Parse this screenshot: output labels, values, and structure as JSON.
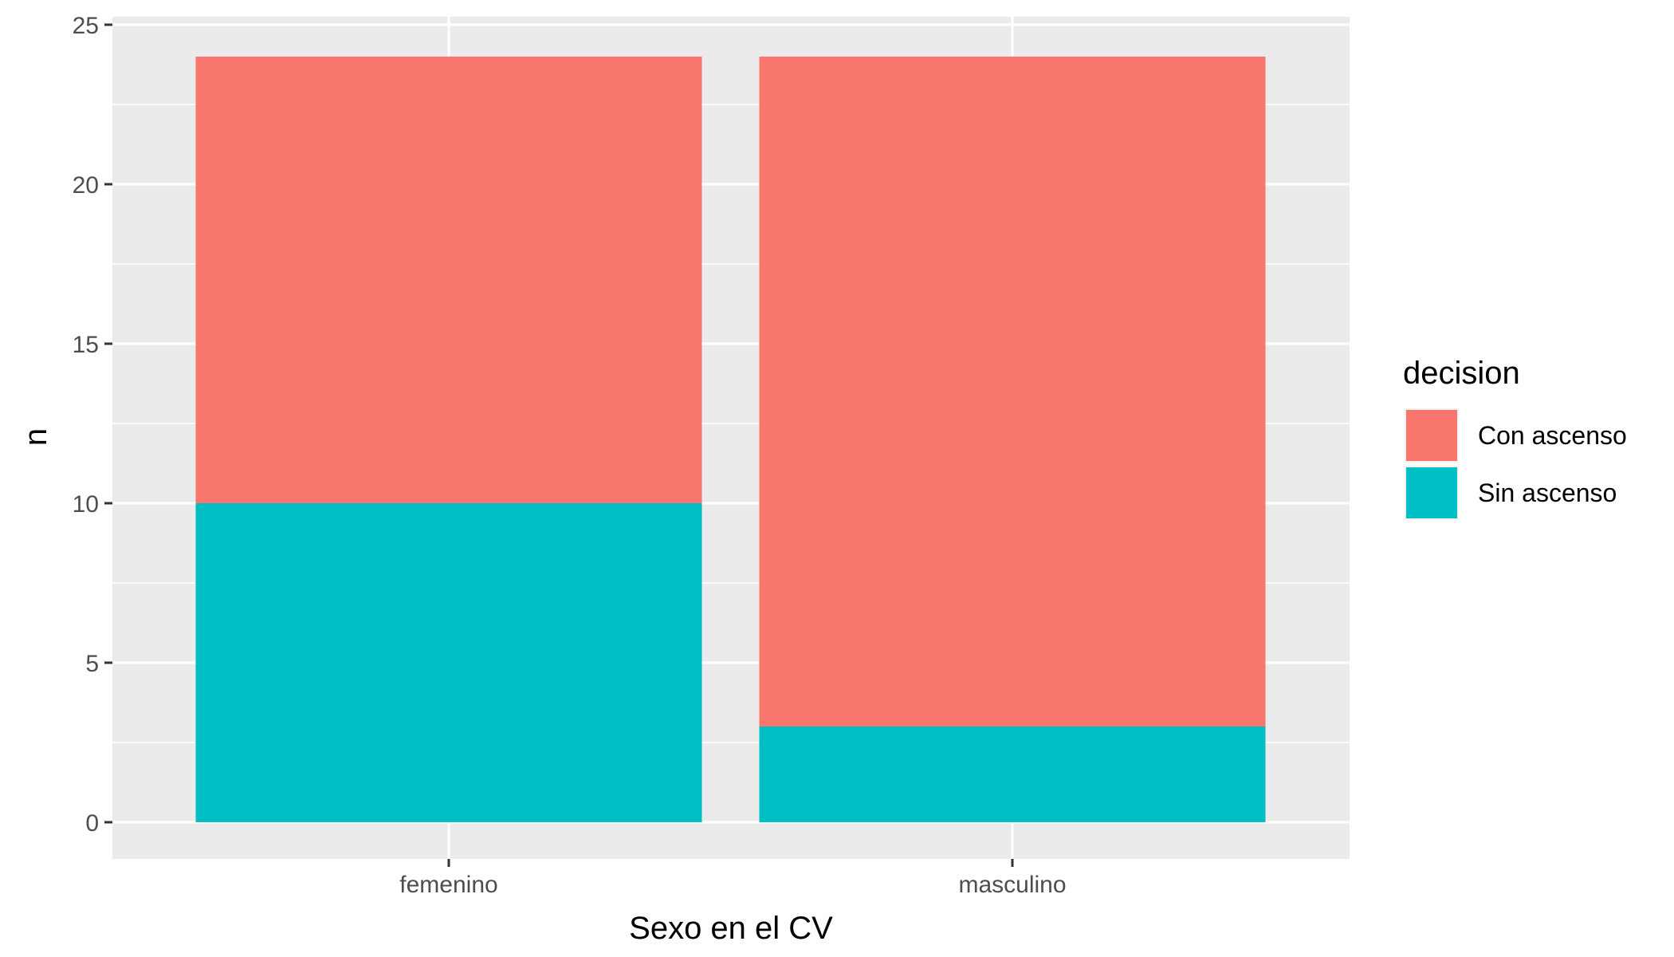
{
  "chart_data": {
    "type": "bar",
    "stacked": true,
    "categories": [
      "femenino",
      "masculino"
    ],
    "series": [
      {
        "name": "Con ascenso",
        "color": "#F8766D",
        "values": [
          14,
          21
        ]
      },
      {
        "name": "Sin ascenso",
        "color": "#00BFC4",
        "values": [
          10,
          3
        ]
      }
    ],
    "xlabel": "Sexo en el CV",
    "ylabel": "n",
    "ylim": [
      0,
      25
    ],
    "yticks": [
      0,
      5,
      10,
      15,
      20,
      25
    ],
    "grid": true,
    "legend": {
      "title": "decision",
      "placement": "right"
    },
    "colors": {
      "panel_background": "#EBEBEB",
      "grid": "#FFFFFF"
    }
  }
}
